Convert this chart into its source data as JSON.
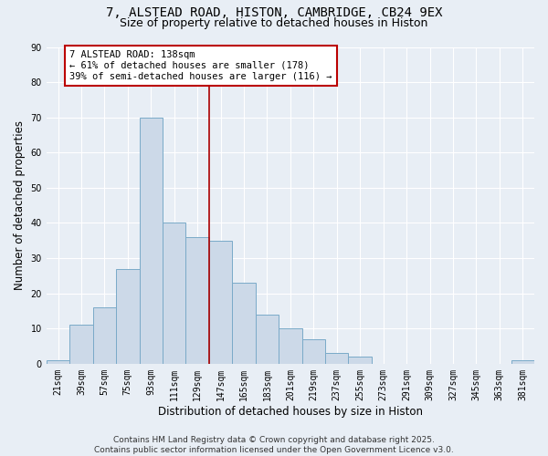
{
  "title_line1": "7, ALSTEAD ROAD, HISTON, CAMBRIDGE, CB24 9EX",
  "title_line2": "Size of property relative to detached houses in Histon",
  "xlabel": "Distribution of detached houses by size in Histon",
  "ylabel": "Number of detached properties",
  "bar_color": "#ccd9e8",
  "bar_edge_color": "#7aaac8",
  "background_color": "#e8eef5",
  "grid_color": "#ffffff",
  "categories": [
    "21sqm",
    "39sqm",
    "57sqm",
    "75sqm",
    "93sqm",
    "111sqm",
    "129sqm",
    "147sqm",
    "165sqm",
    "183sqm",
    "201sqm",
    "219sqm",
    "237sqm",
    "255sqm",
    "273sqm",
    "291sqm",
    "309sqm",
    "327sqm",
    "345sqm",
    "363sqm",
    "381sqm"
  ],
  "values": [
    1,
    11,
    16,
    27,
    70,
    40,
    36,
    35,
    23,
    14,
    10,
    7,
    3,
    2,
    0,
    0,
    0,
    0,
    0,
    0,
    1
  ],
  "vline_x_index": 6.5,
  "vline_color": "#aa0000",
  "annotation_text": "7 ALSTEAD ROAD: 138sqm\n← 61% of detached houses are smaller (178)\n39% of semi-detached houses are larger (116) →",
  "annotation_box_color": "#ffffff",
  "annotation_box_edge": "#bb0000",
  "ylim": [
    0,
    90
  ],
  "yticks": [
    0,
    10,
    20,
    30,
    40,
    50,
    60,
    70,
    80,
    90
  ],
  "footer_text": "Contains HM Land Registry data © Crown copyright and database right 2025.\nContains public sector information licensed under the Open Government Licence v3.0.",
  "title_fontsize": 10,
  "subtitle_fontsize": 9,
  "axis_label_fontsize": 8.5,
  "tick_fontsize": 7,
  "annotation_fontsize": 7.5,
  "footer_fontsize": 6.5
}
